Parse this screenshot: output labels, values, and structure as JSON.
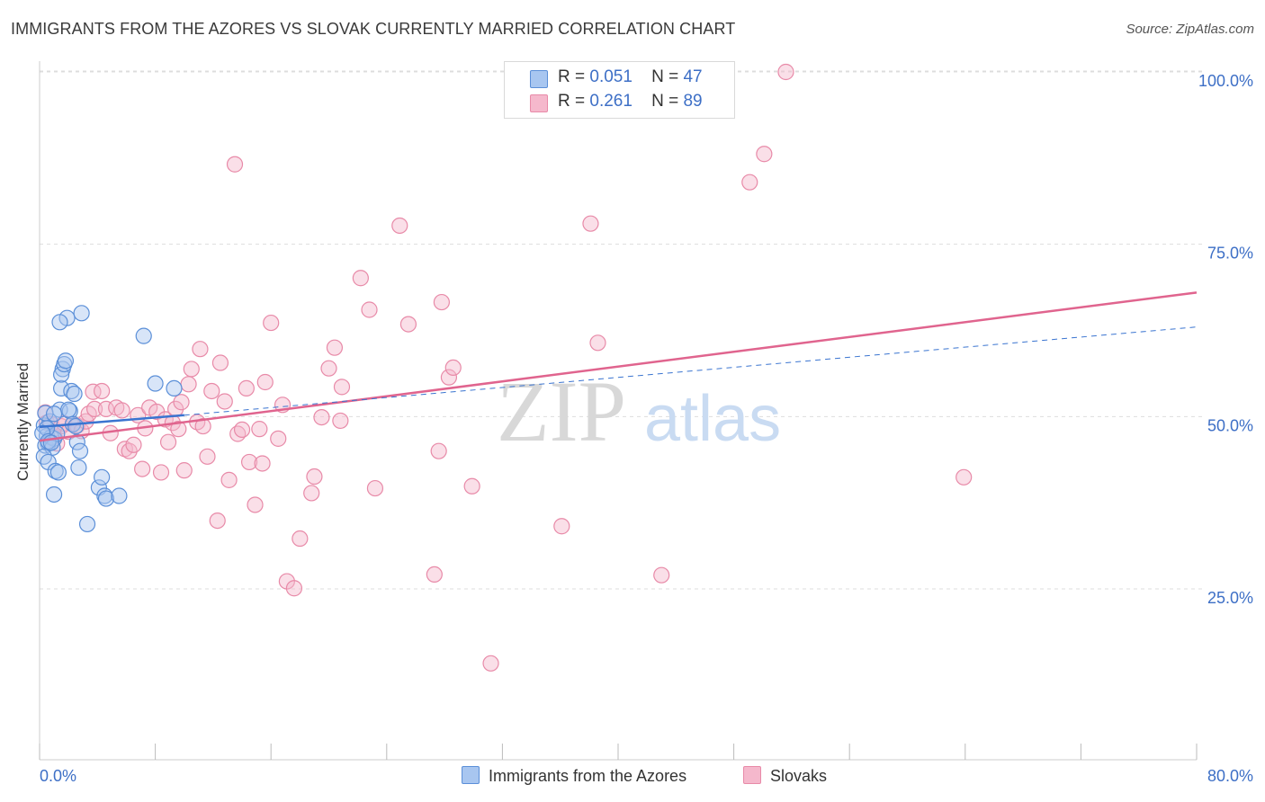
{
  "title": "IMMIGRANTS FROM THE AZORES VS SLOVAK CURRENTLY MARRIED CORRELATION CHART",
  "source": "Source: ZipAtlas.com",
  "watermark": {
    "zip": "ZIP",
    "atlas": "atlas"
  },
  "legend": {
    "rows": [
      {
        "r_label": "R =",
        "r_value": "0.051",
        "n_label": "N =",
        "n_value": "47"
      },
      {
        "r_label": "R =",
        "r_value": "0.261",
        "n_label": "N =",
        "n_value": "89"
      }
    ]
  },
  "bottom_legend": [
    "Immigrants from the Azores",
    "Slovaks"
  ],
  "colors": {
    "blue_fill": "#a8c6f0",
    "blue_stroke": "#5b8fd8",
    "blue_line": "#3a74d0",
    "pink_fill": "#f5b8cc",
    "pink_stroke": "#e88aa8",
    "pink_line": "#e0648e",
    "tick_text": "#3d6fc6",
    "grid": "#dddddd"
  },
  "chart_data": {
    "type": "scatter",
    "title": "IMMIGRANTS FROM THE AZORES VS SLOVAK CURRENTLY MARRIED CORRELATION CHART",
    "xlabel": "",
    "ylabel": "Currently Married",
    "xlim": [
      0,
      80
    ],
    "ylim": [
      0,
      103
    ],
    "x_tick_labels": [
      {
        "value": 0,
        "label": "0.0%"
      },
      {
        "value": 80,
        "label": "80.0%"
      }
    ],
    "y_tick_labels": [
      {
        "value": 100,
        "label": "100.0%"
      },
      {
        "value": 75,
        "label": "75.0%"
      },
      {
        "value": 50,
        "label": "50.0%"
      },
      {
        "value": 25,
        "label": "25.0%"
      }
    ],
    "x_minor_ticks": [
      0,
      8,
      16,
      24,
      32,
      40,
      48,
      56,
      64,
      72,
      80
    ],
    "grid": true,
    "series": [
      {
        "name": "Immigrants from the Azores",
        "r": 0.051,
        "n": 47,
        "trend": {
          "x0": 0,
          "y0": 48.5,
          "x1": 10,
          "y1": 50.2
        },
        "trend_extended": {
          "x0": 10,
          "y0": 50.2,
          "x1": 80,
          "y1": 63.0
        },
        "points": [
          [
            0.3,
            48.7
          ],
          [
            0.5,
            47.2
          ],
          [
            0.6,
            46.1
          ],
          [
            0.4,
            45.8
          ],
          [
            0.8,
            47.0
          ],
          [
            0.7,
            49.3
          ],
          [
            1.0,
            46.8
          ],
          [
            0.9,
            45.5
          ],
          [
            1.2,
            47.5
          ],
          [
            0.5,
            48.3
          ],
          [
            0.3,
            44.2
          ],
          [
            0.6,
            43.4
          ],
          [
            1.1,
            42.1
          ],
          [
            1.3,
            41.9
          ],
          [
            1.0,
            38.7
          ],
          [
            1.4,
            51.0
          ],
          [
            1.5,
            54.1
          ],
          [
            1.6,
            56.9
          ],
          [
            1.5,
            56.1
          ],
          [
            1.7,
            57.6
          ],
          [
            1.8,
            58.1
          ],
          [
            1.9,
            64.3
          ],
          [
            1.4,
            63.7
          ],
          [
            2.9,
            65.0
          ],
          [
            2.1,
            50.8
          ],
          [
            2.0,
            51.0
          ],
          [
            2.3,
            48.9
          ],
          [
            2.5,
            48.6
          ],
          [
            2.2,
            53.7
          ],
          [
            2.4,
            53.3
          ],
          [
            2.6,
            46.3
          ],
          [
            2.7,
            42.6
          ],
          [
            2.8,
            45.0
          ],
          [
            3.3,
            34.4
          ],
          [
            4.1,
            39.7
          ],
          [
            4.3,
            41.2
          ],
          [
            4.5,
            38.5
          ],
          [
            4.6,
            38.1
          ],
          [
            5.5,
            38.5
          ],
          [
            7.2,
            61.7
          ],
          [
            8.0,
            54.8
          ],
          [
            9.3,
            54.1
          ],
          [
            0.4,
            50.5
          ],
          [
            0.2,
            47.6
          ],
          [
            0.6,
            46.4
          ],
          [
            0.8,
            46.2
          ],
          [
            1.0,
            50.4
          ]
        ]
      },
      {
        "name": "Slovaks",
        "r": 0.261,
        "n": 89,
        "trend": {
          "x0": 0,
          "y0": 46.5,
          "x1": 80,
          "y1": 68.0
        },
        "points": [
          [
            0.4,
            50.6
          ],
          [
            0.5,
            49.1
          ],
          [
            0.8,
            48.9
          ],
          [
            1.0,
            47.1
          ],
          [
            1.2,
            46.1
          ],
          [
            1.5,
            48.6
          ],
          [
            1.7,
            49.0
          ],
          [
            2.0,
            47.8
          ],
          [
            2.3,
            48.9
          ],
          [
            2.6,
            48.7
          ],
          [
            2.9,
            47.9
          ],
          [
            3.2,
            49.3
          ],
          [
            3.4,
            50.4
          ],
          [
            3.7,
            53.6
          ],
          [
            3.8,
            51.1
          ],
          [
            4.3,
            53.7
          ],
          [
            4.6,
            51.1
          ],
          [
            4.9,
            47.6
          ],
          [
            5.3,
            51.3
          ],
          [
            5.7,
            50.9
          ],
          [
            5.9,
            45.3
          ],
          [
            6.2,
            45.0
          ],
          [
            6.5,
            45.9
          ],
          [
            6.8,
            50.2
          ],
          [
            7.1,
            42.4
          ],
          [
            7.3,
            48.3
          ],
          [
            7.6,
            51.3
          ],
          [
            8.1,
            50.7
          ],
          [
            8.4,
            41.9
          ],
          [
            8.7,
            49.6
          ],
          [
            8.9,
            46.3
          ],
          [
            9.2,
            49.1
          ],
          [
            9.4,
            51.1
          ],
          [
            9.6,
            48.2
          ],
          [
            9.8,
            52.1
          ],
          [
            10.0,
            42.2
          ],
          [
            10.3,
            54.7
          ],
          [
            10.5,
            56.9
          ],
          [
            10.9,
            49.2
          ],
          [
            11.1,
            59.8
          ],
          [
            11.3,
            48.6
          ],
          [
            11.6,
            44.2
          ],
          [
            11.9,
            53.7
          ],
          [
            12.3,
            34.9
          ],
          [
            12.5,
            57.8
          ],
          [
            12.8,
            52.2
          ],
          [
            13.1,
            40.8
          ],
          [
            13.5,
            86.6
          ],
          [
            13.7,
            47.5
          ],
          [
            14.0,
            48.1
          ],
          [
            14.3,
            54.1
          ],
          [
            14.5,
            43.4
          ],
          [
            14.9,
            37.2
          ],
          [
            15.2,
            48.2
          ],
          [
            15.4,
            43.2
          ],
          [
            15.6,
            55.0
          ],
          [
            16.0,
            63.6
          ],
          [
            16.5,
            46.8
          ],
          [
            16.8,
            51.7
          ],
          [
            17.1,
            26.1
          ],
          [
            17.6,
            25.1
          ],
          [
            18.0,
            32.3
          ],
          [
            18.8,
            38.9
          ],
          [
            19.0,
            41.3
          ],
          [
            19.5,
            49.9
          ],
          [
            20.0,
            57.0
          ],
          [
            20.4,
            60.0
          ],
          [
            20.8,
            49.4
          ],
          [
            20.9,
            54.3
          ],
          [
            22.2,
            70.1
          ],
          [
            22.8,
            65.5
          ],
          [
            23.2,
            39.6
          ],
          [
            24.9,
            77.7
          ],
          [
            25.5,
            63.4
          ],
          [
            27.3,
            27.1
          ],
          [
            27.6,
            45.0
          ],
          [
            27.8,
            66.6
          ],
          [
            28.3,
            55.7
          ],
          [
            28.6,
            57.1
          ],
          [
            29.9,
            39.9
          ],
          [
            31.2,
            14.2
          ],
          [
            36.1,
            34.1
          ],
          [
            38.1,
            78.0
          ],
          [
            38.6,
            60.7
          ],
          [
            43.0,
            27.0
          ],
          [
            49.1,
            84.0
          ],
          [
            50.1,
            88.1
          ],
          [
            51.6,
            100.0
          ],
          [
            63.9,
            41.2
          ]
        ]
      }
    ]
  }
}
